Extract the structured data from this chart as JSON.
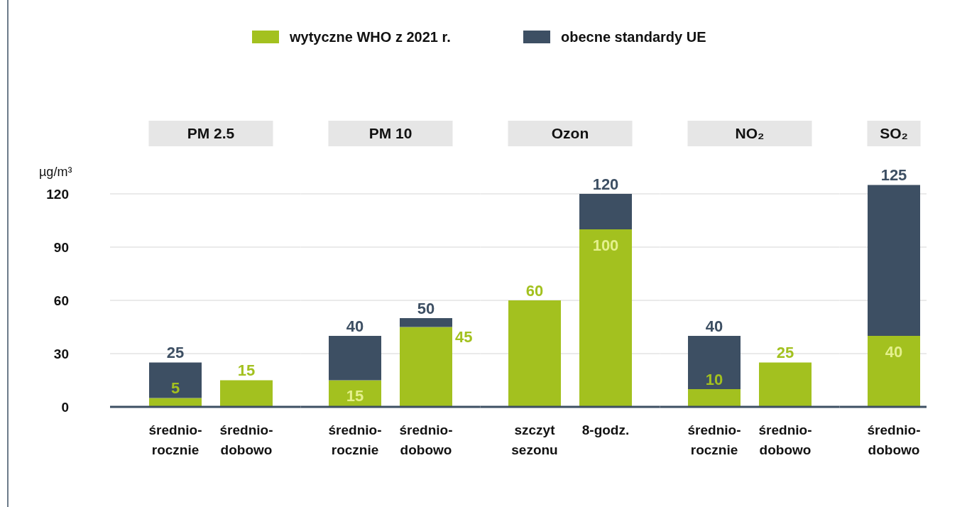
{
  "chart_data": [
    {
      "type": "bar",
      "title": "PM 2.5",
      "stacked": true,
      "legend": "top",
      "grid": "y",
      "ylabel": "µg/m³",
      "ylim": [
        0,
        120
      ],
      "yticks": [
        0,
        30,
        60,
        90,
        120
      ],
      "categories": [
        "średnio-\nrocznie",
        "średnio-\ndobowo"
      ],
      "totals": [
        "25",
        null
      ],
      "series": [
        {
          "name": "wytyczne WHO z 2021 r.",
          "color": "#a3c11f",
          "values": [
            5,
            15
          ],
          "value_labels": [
            "5",
            "15"
          ]
        },
        {
          "name": "obecne standardy UE",
          "color": "#3d4f63",
          "values": [
            20,
            null
          ]
        }
      ]
    },
    {
      "type": "bar",
      "title": "PM 10",
      "stacked": true,
      "grid": "y",
      "tick_labels": "x",
      "ylim": [
        0,
        120
      ],
      "yticks": [
        0,
        30,
        60,
        90,
        120
      ],
      "categories": [
        "średnio-\nrocznie",
        "średnio-\ndobowo"
      ],
      "totals": [
        "40",
        "50"
      ],
      "series": [
        {
          "color": "#a3c11f",
          "values": [
            15,
            45
          ],
          "value_labels": [
            "15",
            "45"
          ]
        },
        {
          "color": "#3d4f63",
          "values": [
            25,
            5
          ]
        }
      ]
    },
    {
      "type": "bar",
      "title": "Ozon",
      "stacked": true,
      "grid": "y",
      "tick_labels": "x",
      "ylim": [
        0,
        120
      ],
      "yticks": [
        0,
        30,
        60,
        90,
        120
      ],
      "categories": [
        "szczyt\nsezonu",
        "8-godz."
      ],
      "totals": [
        null,
        "120"
      ],
      "series": [
        {
          "color": "#a3c11f",
          "values": [
            60,
            100
          ],
          "value_labels": [
            "60",
            "100"
          ]
        },
        {
          "color": "#3d4f63",
          "values": [
            null,
            20
          ]
        }
      ]
    },
    {
      "type": "bar",
      "title": "NO₂",
      "stacked": true,
      "grid": "y",
      "tick_labels": "x",
      "ylim": [
        0,
        120
      ],
      "yticks": [
        0,
        30,
        60,
        90,
        120
      ],
      "categories": [
        "średnio-\nrocznie",
        "średnio-\ndobowo"
      ],
      "totals": [
        "40",
        null
      ],
      "series": [
        {
          "color": "#a3c11f",
          "values": [
            10,
            25
          ],
          "value_labels": [
            "10",
            "25"
          ]
        },
        {
          "color": "#3d4f63",
          "values": [
            30,
            null
          ]
        }
      ]
    },
    {
      "type": "bar",
      "title": "SO₂",
      "stacked": true,
      "grid": "y",
      "tick_labels": "x",
      "ylim": [
        0,
        125
      ],
      "yticks": [
        0,
        30,
        60,
        90,
        120
      ],
      "categories": [
        "średnio-\ndobowo"
      ],
      "totals": [
        "125"
      ],
      "series": [
        {
          "color": "#a3c11f",
          "values": [
            40
          ],
          "value_labels": [
            "40"
          ]
        },
        {
          "color": "#3d4f63",
          "values": [
            85
          ]
        }
      ]
    }
  ]
}
